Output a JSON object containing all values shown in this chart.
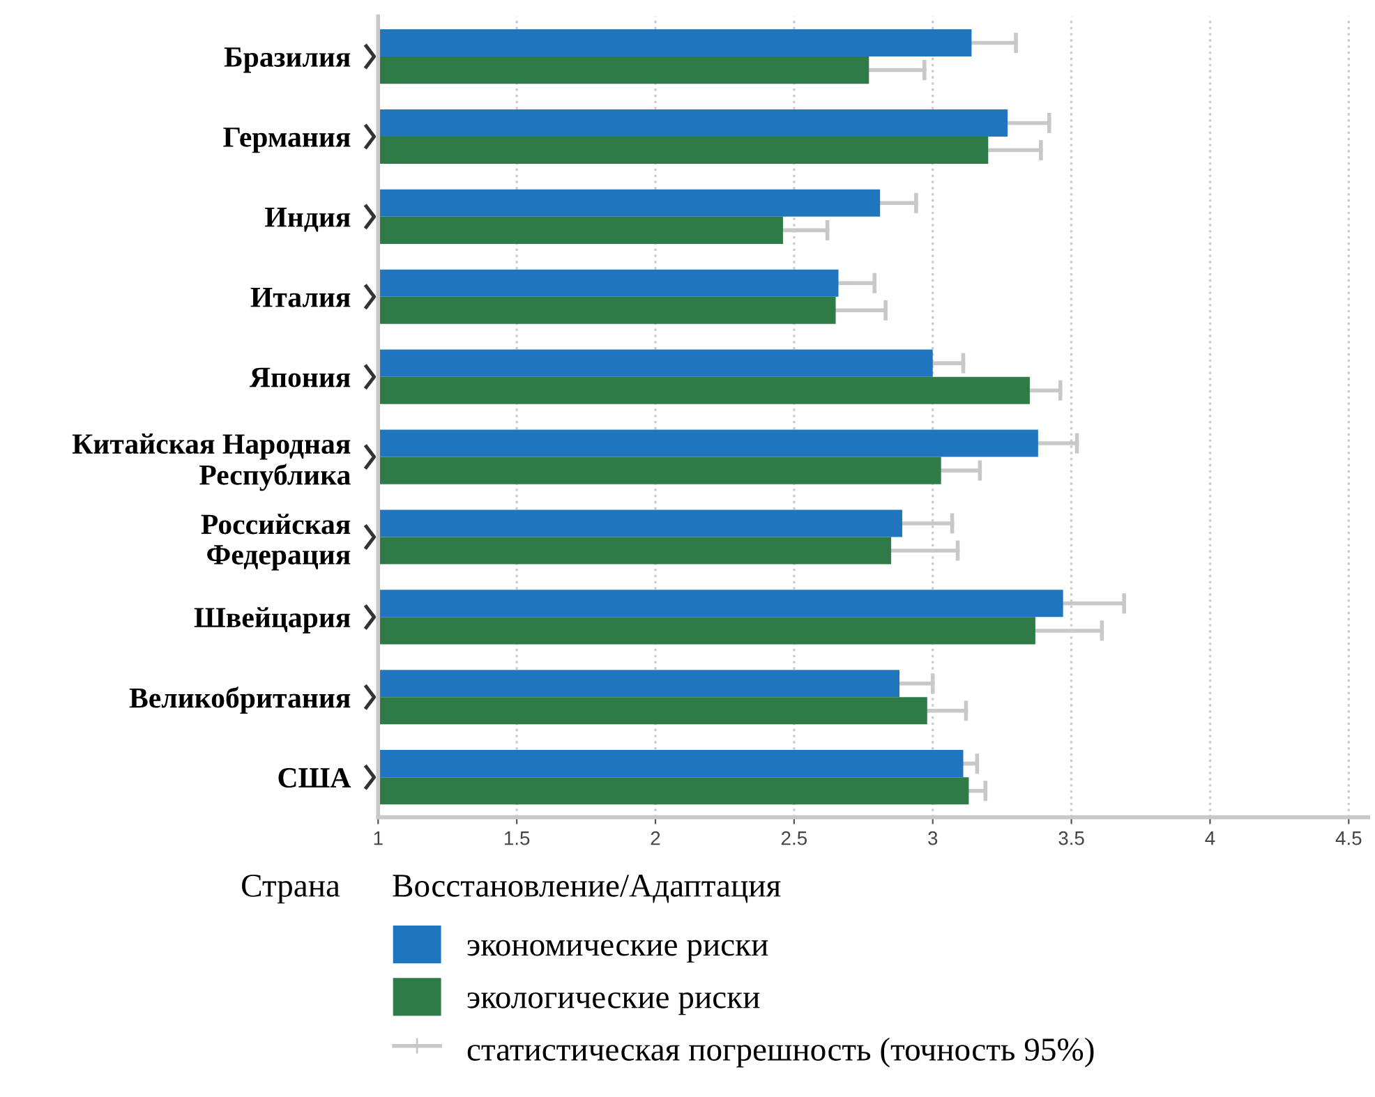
{
  "chart_data": {
    "type": "bar",
    "orientation": "horizontal",
    "xlabel": "Восстановление/Адаптация",
    "ylabel": "Страна",
    "categories": [
      "Бразилия",
      "Германия",
      "Индия",
      "Италия",
      "Япония",
      "Китайская Народная\nРеспублика",
      "Российская\nФедерация",
      "Швейцария",
      "Великобритания",
      "США"
    ],
    "series": [
      {
        "name": "экономические риски",
        "color": "#1f75be",
        "values": [
          3.14,
          3.27,
          2.81,
          2.66,
          3.0,
          3.38,
          2.89,
          3.47,
          2.88,
          3.11
        ],
        "errors": [
          [
            3.14,
            3.3
          ],
          [
            3.27,
            3.42
          ],
          [
            2.81,
            2.94
          ],
          [
            2.66,
            2.79
          ],
          [
            3.0,
            3.11
          ],
          [
            3.38,
            3.52
          ],
          [
            2.89,
            3.07
          ],
          [
            3.47,
            3.69
          ],
          [
            2.88,
            3.0
          ],
          [
            3.11,
            3.16
          ]
        ]
      },
      {
        "name": "экологические риски",
        "color": "#2f7b48",
        "values": [
          2.77,
          3.2,
          2.46,
          2.65,
          3.35,
          3.03,
          2.85,
          3.37,
          2.98,
          3.13
        ],
        "errors": [
          [
            2.77,
            2.97
          ],
          [
            3.2,
            3.39
          ],
          [
            2.46,
            2.62
          ],
          [
            2.65,
            2.83
          ],
          [
            3.35,
            3.46
          ],
          [
            3.03,
            3.17
          ],
          [
            2.85,
            3.09
          ],
          [
            3.37,
            3.61
          ],
          [
            2.98,
            3.12
          ],
          [
            3.13,
            3.19
          ]
        ]
      }
    ],
    "xlim": [
      1,
      4.57
    ],
    "xticks": [
      1,
      1.5,
      2,
      2.5,
      3,
      3.5,
      4,
      4.5
    ],
    "grid": "x",
    "legend": "bottom",
    "annotations": [
      "статистическая погрешность (точность 95%)"
    ]
  }
}
